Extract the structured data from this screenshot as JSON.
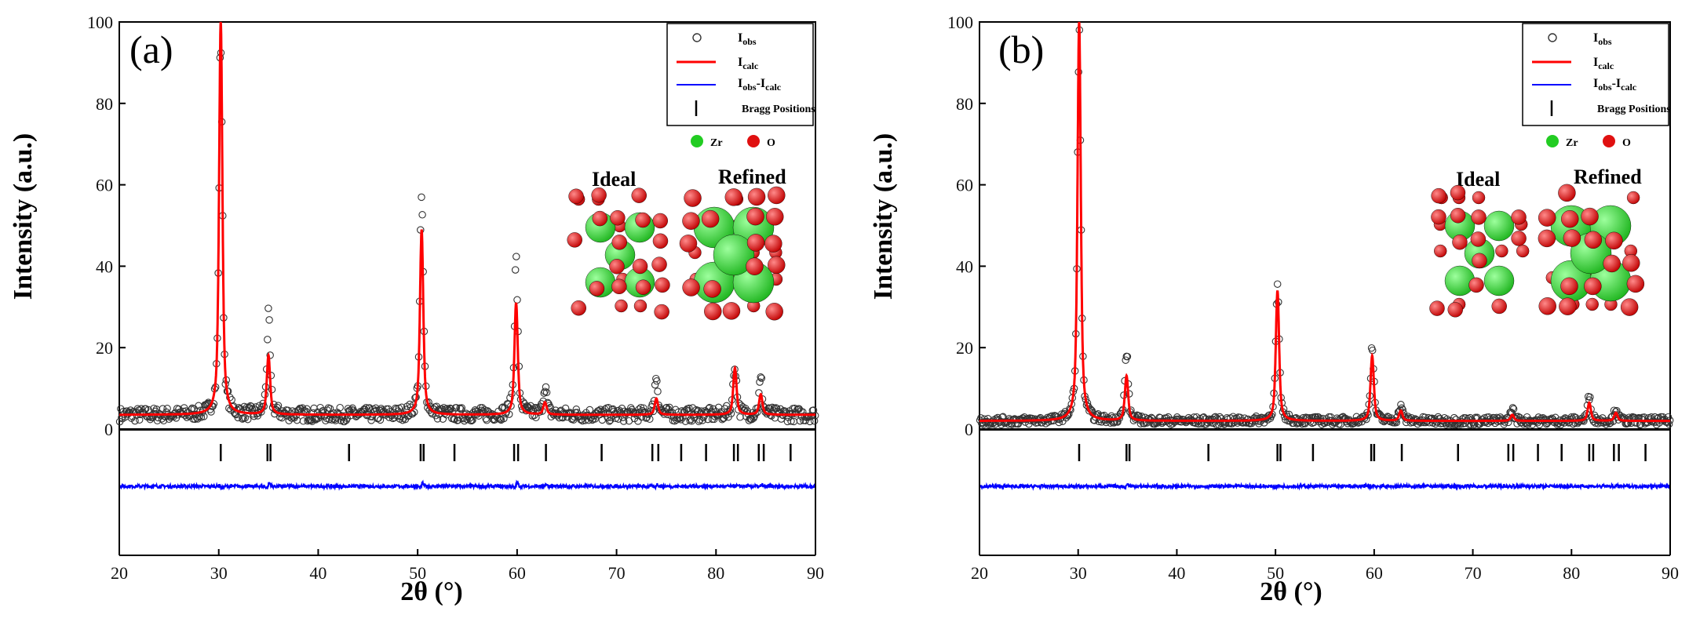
{
  "figure": {
    "panels": [
      {
        "panel_label": "(a)",
        "ylabel": "Intensity (a.u.)",
        "xlabel": "2θ (°)",
        "legend": {
          "obs": "I",
          "obs_sub": "obs",
          "calc": "I",
          "calc_sub": "calc",
          "diff": "I",
          "diff_sub": "obs",
          "diff_mid": "-I",
          "diff_sub2": "calc",
          "bragg": "Bragg Positions",
          "zr": "Zr",
          "o": "O"
        },
        "structure_labels": {
          "ideal": "Ideal",
          "refined": "Refined"
        }
      },
      {
        "panel_label": "(b)",
        "ylabel": "Intensity (a.u.)",
        "xlabel": "2θ (°)",
        "legend": {
          "obs": "I",
          "obs_sub": "obs",
          "calc": "I",
          "calc_sub": "calc",
          "diff": "I",
          "diff_sub": "obs",
          "diff_mid": "-I",
          "diff_sub2": "calc",
          "bragg": "Bragg Positions",
          "zr": "Zr",
          "o": "O"
        },
        "structure_labels": {
          "ideal": "Ideal",
          "refined": "Refined"
        }
      }
    ]
  },
  "colors": {
    "obs": "#333333",
    "calc": "#ff0000",
    "diff": "#0000ff",
    "bragg": "#000000",
    "zr": "#22cc22",
    "o": "#e01010"
  },
  "chart_data": [
    {
      "type": "line",
      "title": "(a)",
      "xlabel": "2θ (°)",
      "ylabel": "Intensity (a.u.)",
      "xlim": [
        20,
        90
      ],
      "ylim": [
        0,
        100
      ],
      "xticks": [
        20,
        30,
        40,
        50,
        60,
        70,
        80,
        90
      ],
      "yticks": [
        0,
        20,
        40,
        60,
        80,
        100
      ],
      "background": 3.5,
      "peaks": [
        {
          "pos": 30.2,
          "calc": 100,
          "obs": 96
        },
        {
          "pos": 35.0,
          "calc": 18,
          "obs": 27
        },
        {
          "pos": 50.4,
          "calc": 49,
          "obs": 57
        },
        {
          "pos": 59.9,
          "calc": 31,
          "obs": 41
        },
        {
          "pos": 62.8,
          "calc": 6.5,
          "obs": 11
        },
        {
          "pos": 74.0,
          "calc": 7.5,
          "obs": 13
        },
        {
          "pos": 81.9,
          "calc": 15,
          "obs": 16
        },
        {
          "pos": 84.5,
          "calc": 8.5,
          "obs": 12
        }
      ],
      "bragg_positions": [
        30.2,
        34.9,
        35.2,
        43.1,
        50.3,
        50.6,
        53.7,
        59.7,
        60.1,
        62.9,
        68.5,
        73.6,
        74.2,
        76.5,
        79.0,
        81.8,
        82.2,
        84.3,
        84.8,
        87.5
      ],
      "series": [
        {
          "name": "Iobs",
          "marker": "open-circle"
        },
        {
          "name": "Icalc",
          "style": "solid"
        },
        {
          "name": "Iobs-Icalc",
          "style": "solid"
        },
        {
          "name": "Bragg Positions",
          "marker": "vertical-tick"
        }
      ]
    },
    {
      "type": "line",
      "title": "(b)",
      "xlabel": "2θ (°)",
      "ylabel": "Intensity (a.u.)",
      "xlim": [
        20,
        90
      ],
      "ylim": [
        0,
        100
      ],
      "xticks": [
        20,
        30,
        40,
        50,
        60,
        70,
        80,
        90
      ],
      "yticks": [
        0,
        20,
        40,
        60,
        80,
        100
      ],
      "background": 2.0,
      "peaks": [
        {
          "pos": 30.1,
          "calc": 100,
          "obs": 98
        },
        {
          "pos": 34.9,
          "calc": 13,
          "obs": 19
        },
        {
          "pos": 50.2,
          "calc": 34,
          "obs": 35
        },
        {
          "pos": 59.8,
          "calc": 18,
          "obs": 20
        },
        {
          "pos": 62.7,
          "calc": 4.5,
          "obs": 6
        },
        {
          "pos": 74.0,
          "calc": 3.5,
          "obs": 5
        },
        {
          "pos": 81.8,
          "calc": 6.5,
          "obs": 8
        },
        {
          "pos": 84.5,
          "calc": 4,
          "obs": 5
        }
      ],
      "bragg_positions": [
        30.1,
        34.9,
        35.2,
        43.2,
        50.2,
        50.5,
        53.8,
        59.7,
        60.0,
        62.8,
        68.5,
        73.6,
        74.1,
        76.6,
        79.0,
        81.8,
        82.2,
        84.3,
        84.8,
        87.5
      ],
      "series": [
        {
          "name": "Iobs",
          "marker": "open-circle"
        },
        {
          "name": "Icalc",
          "style": "solid"
        },
        {
          "name": "Iobs-Icalc",
          "style": "solid"
        },
        {
          "name": "Bragg Positions",
          "marker": "vertical-tick"
        }
      ]
    }
  ]
}
